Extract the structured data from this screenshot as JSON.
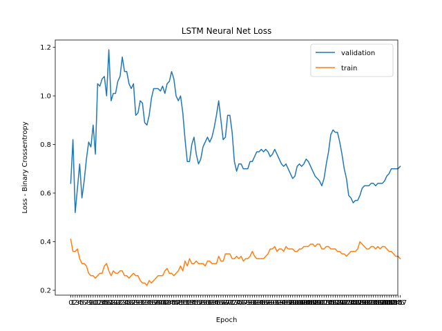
{
  "chart_data": {
    "type": "line",
    "title": "LSTM Neural Net Loss",
    "xlabel": "Epoch",
    "ylabel": "Loss - Binary Crossentropy",
    "ylim": [
      0.18,
      1.23
    ],
    "xlim": [
      -6.9,
      145.9
    ],
    "yticks": [
      0.2,
      0.4,
      0.6,
      0.8,
      1.0,
      1.2
    ],
    "ytick_labels": [
      "0.2",
      "0.4",
      "0.6",
      "0.8",
      "1.0",
      "1.2"
    ],
    "x_tick_step": 1,
    "legend_position": "top-right",
    "grid": false,
    "series": [
      {
        "name": "validation",
        "color": "#1f77b4",
        "values": [
          0.64,
          0.82,
          0.52,
          0.62,
          0.72,
          0.58,
          0.65,
          0.74,
          0.81,
          0.79,
          0.88,
          0.76,
          1.05,
          1.04,
          1.07,
          1.08,
          1.0,
          1.19,
          0.98,
          1.01,
          1.01,
          1.06,
          1.08,
          1.16,
          1.1,
          1.1,
          1.05,
          1.03,
          1.05,
          0.92,
          0.93,
          0.98,
          0.97,
          0.89,
          0.88,
          0.92,
          0.99,
          1.03,
          1.03,
          1.03,
          1.02,
          1.04,
          1.01,
          1.05,
          1.06,
          1.1,
          1.07,
          1.0,
          0.98,
          1.0,
          0.93,
          0.82,
          0.73,
          0.73,
          0.8,
          0.83,
          0.76,
          0.72,
          0.74,
          0.79,
          0.81,
          0.83,
          0.81,
          0.83,
          0.87,
          0.92,
          0.98,
          0.9,
          0.82,
          0.83,
          0.92,
          0.92,
          0.85,
          0.73,
          0.69,
          0.72,
          0.72,
          0.7,
          0.7,
          0.7,
          0.73,
          0.73,
          0.75,
          0.77,
          0.77,
          0.78,
          0.77,
          0.78,
          0.77,
          0.75,
          0.76,
          0.78,
          0.76,
          0.74,
          0.72,
          0.71,
          0.72,
          0.7,
          0.68,
          0.66,
          0.67,
          0.71,
          0.72,
          0.71,
          0.72,
          0.74,
          0.73,
          0.71,
          0.69,
          0.67,
          0.66,
          0.65,
          0.63,
          0.66,
          0.72,
          0.77,
          0.84,
          0.86,
          0.85,
          0.85,
          0.81,
          0.76,
          0.7,
          0.66,
          0.59,
          0.58,
          0.56,
          0.57,
          0.57,
          0.59,
          0.62,
          0.63,
          0.63,
          0.63,
          0.64,
          0.64,
          0.63,
          0.64,
          0.64,
          0.64,
          0.65,
          0.67,
          0.68,
          0.7,
          0.7,
          0.7,
          0.7,
          0.71
        ]
      },
      {
        "name": "train",
        "color": "#ff7f0e",
        "values": [
          0.41,
          0.36,
          0.36,
          0.37,
          0.33,
          0.31,
          0.31,
          0.3,
          0.27,
          0.26,
          0.26,
          0.25,
          0.26,
          0.27,
          0.27,
          0.3,
          0.31,
          0.28,
          0.26,
          0.28,
          0.27,
          0.27,
          0.28,
          0.28,
          0.26,
          0.26,
          0.25,
          0.26,
          0.27,
          0.26,
          0.26,
          0.24,
          0.23,
          0.23,
          0.22,
          0.24,
          0.23,
          0.24,
          0.25,
          0.26,
          0.26,
          0.26,
          0.28,
          0.29,
          0.27,
          0.27,
          0.26,
          0.27,
          0.28,
          0.3,
          0.28,
          0.32,
          0.3,
          0.33,
          0.31,
          0.31,
          0.32,
          0.31,
          0.31,
          0.31,
          0.3,
          0.32,
          0.32,
          0.31,
          0.31,
          0.31,
          0.34,
          0.32,
          0.32,
          0.35,
          0.35,
          0.35,
          0.33,
          0.33,
          0.34,
          0.33,
          0.34,
          0.32,
          0.33,
          0.33,
          0.34,
          0.36,
          0.34,
          0.33,
          0.33,
          0.33,
          0.33,
          0.34,
          0.35,
          0.37,
          0.37,
          0.38,
          0.36,
          0.37,
          0.37,
          0.36,
          0.38,
          0.37,
          0.37,
          0.37,
          0.36,
          0.36,
          0.37,
          0.37,
          0.38,
          0.38,
          0.38,
          0.39,
          0.39,
          0.38,
          0.39,
          0.39,
          0.37,
          0.37,
          0.38,
          0.38,
          0.37,
          0.37,
          0.37,
          0.36,
          0.36,
          0.35,
          0.35,
          0.34,
          0.35,
          0.36,
          0.36,
          0.36,
          0.37,
          0.4,
          0.39,
          0.38,
          0.37,
          0.37,
          0.38,
          0.38,
          0.37,
          0.38,
          0.37,
          0.38,
          0.38,
          0.37,
          0.36,
          0.36,
          0.35,
          0.34,
          0.34,
          0.33
        ]
      }
    ]
  }
}
